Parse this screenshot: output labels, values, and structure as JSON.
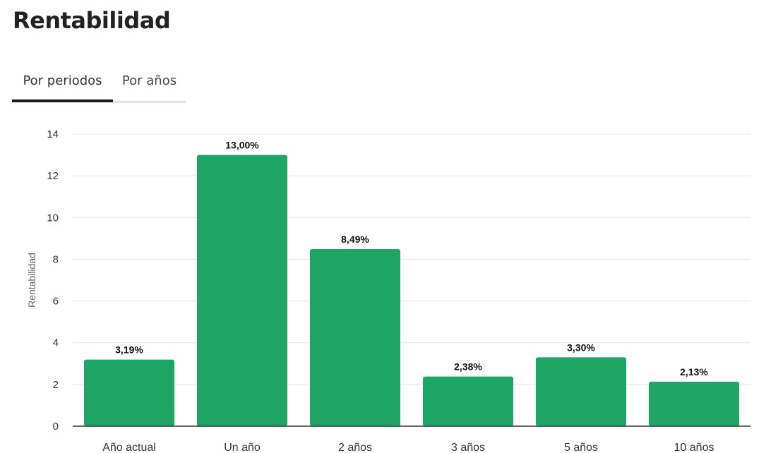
{
  "header": {
    "title": "Rentabilidad"
  },
  "tabs": [
    {
      "label": "Por periodos",
      "active": true
    },
    {
      "label": "Por años",
      "active": false
    }
  ],
  "colors": {
    "bar": "#1fa566",
    "grid": "#e6e6e6",
    "axis": "#333333"
  },
  "chart_data": {
    "type": "bar",
    "categories": [
      "Año actual",
      "Un año",
      "2 años",
      "3 años",
      "5 años",
      "10 años"
    ],
    "values": [
      3.19,
      13.0,
      8.49,
      2.38,
      3.3,
      2.13
    ],
    "data_labels": [
      "3,19%",
      "13,00%",
      "8,49%",
      "2,38%",
      "3,30%",
      "2,13%"
    ],
    "ylabel": "Rentabilidad",
    "xlabel": "",
    "ylim": [
      0,
      14
    ],
    "yticks": [
      0,
      2,
      4,
      6,
      8,
      10,
      12,
      14
    ],
    "grid": true,
    "legend": "none"
  }
}
